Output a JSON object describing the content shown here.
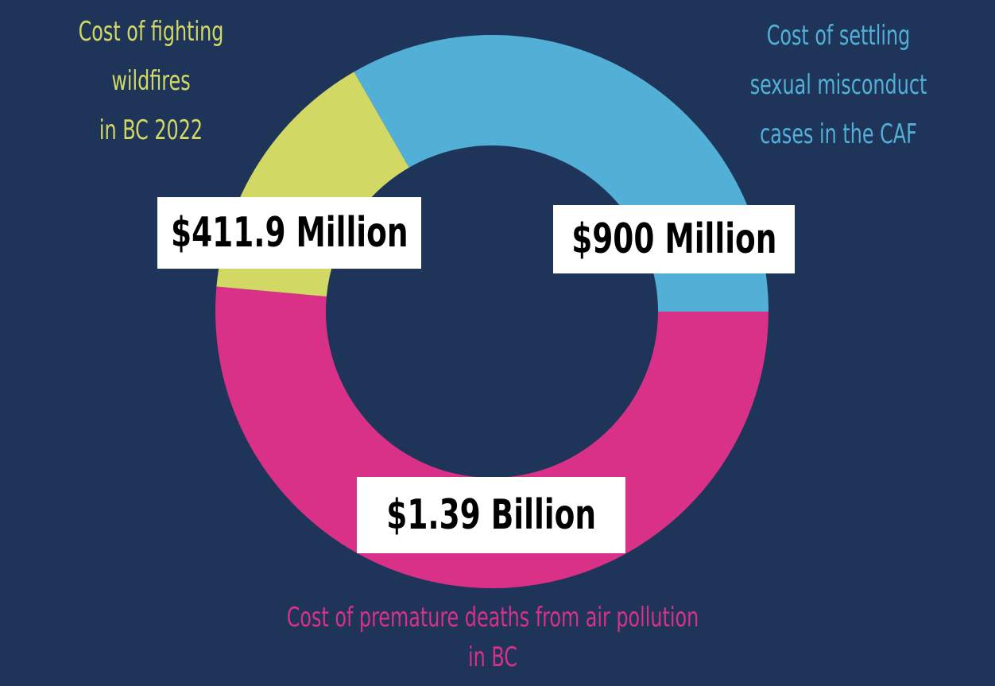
{
  "chart_data": {
    "type": "pie",
    "style": "donut",
    "title": "",
    "categories": [
      "Cost of fighting wildfires in BC 2022",
      "Cost of settling sexual misconduct cases in the CAF",
      "Cost of premature deaths from air pollution in BC"
    ],
    "values": [
      411.9,
      900,
      1390
    ],
    "unit": "million CAD",
    "value_labels": [
      "$411.9 Million",
      "$900 Million",
      "$1.39 Billion"
    ],
    "colors": [
      "#d1d964",
      "#52afd6",
      "#d93188"
    ],
    "label_lines": {
      "wildfires": [
        "Cost of fighting",
        "wildfires",
        "in BC 2022"
      ],
      "misconduct": [
        "Cost of settling",
        "sexual misconduct",
        "cases in the CAF"
      ],
      "pollution": [
        "Cost of premature deaths from air pollution",
        "in BC"
      ]
    },
    "legend": "none"
  },
  "colors": {
    "background": "#1f3459",
    "value_box_bg": "#ffffff",
    "value_box_text": "#000000"
  }
}
